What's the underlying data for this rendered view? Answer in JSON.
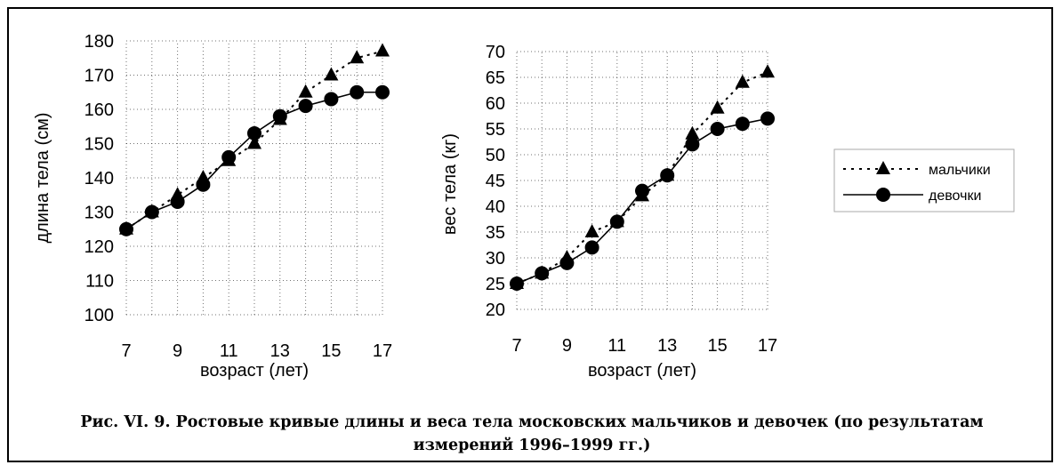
{
  "caption": {
    "line1": "Рис. VI. 9. Ростовые кривые длины и веса тела московских мальчиков и девочек (по результатам",
    "line2": "измерений 1996–1999 гг.)"
  },
  "legend": {
    "boys": "мальчики",
    "girls": "девочки"
  },
  "chart_data": [
    {
      "type": "line",
      "title": "",
      "xlabel": "возраст (лет)",
      "ylabel": "длина тела (см)",
      "x": [
        7,
        8,
        9,
        10,
        11,
        12,
        13,
        14,
        15,
        16,
        17
      ],
      "xticks": [
        "7",
        "9",
        "11",
        "13",
        "15",
        "17"
      ],
      "xlim": [
        7,
        17
      ],
      "ylim": [
        100,
        180
      ],
      "yticks": [
        "100",
        "110",
        "120",
        "130",
        "140",
        "150",
        "160",
        "170",
        "180"
      ],
      "grid": true,
      "series": [
        {
          "name": "мальчики",
          "marker": "triangle",
          "line": "dotted",
          "values": [
            125,
            130,
            135,
            140,
            145,
            150,
            157,
            165,
            170,
            175,
            177
          ]
        },
        {
          "name": "девочки",
          "marker": "circle",
          "line": "solid",
          "values": [
            125,
            130,
            133,
            138,
            146,
            153,
            158,
            161,
            163,
            165,
            165
          ]
        }
      ]
    },
    {
      "type": "line",
      "title": "",
      "xlabel": "возраст (лет)",
      "ylabel": "вес тела (кг)",
      "x": [
        7,
        8,
        9,
        10,
        11,
        12,
        13,
        14,
        15,
        16,
        17
      ],
      "xticks": [
        "7",
        "9",
        "11",
        "13",
        "15",
        "17"
      ],
      "xlim": [
        7,
        17
      ],
      "ylim": [
        20,
        70
      ],
      "yticks": [
        "20",
        "25",
        "30",
        "35",
        "40",
        "45",
        "50",
        "55",
        "60",
        "65",
        "70"
      ],
      "grid": true,
      "series": [
        {
          "name": "мальчики",
          "marker": "triangle",
          "line": "dotted",
          "values": [
            25,
            27,
            30,
            35,
            37,
            42,
            46,
            54,
            59,
            64,
            66
          ]
        },
        {
          "name": "девочки",
          "marker": "circle",
          "line": "solid",
          "values": [
            25,
            27,
            29,
            32,
            37,
            43,
            46,
            52,
            55,
            56,
            57
          ]
        }
      ]
    }
  ]
}
